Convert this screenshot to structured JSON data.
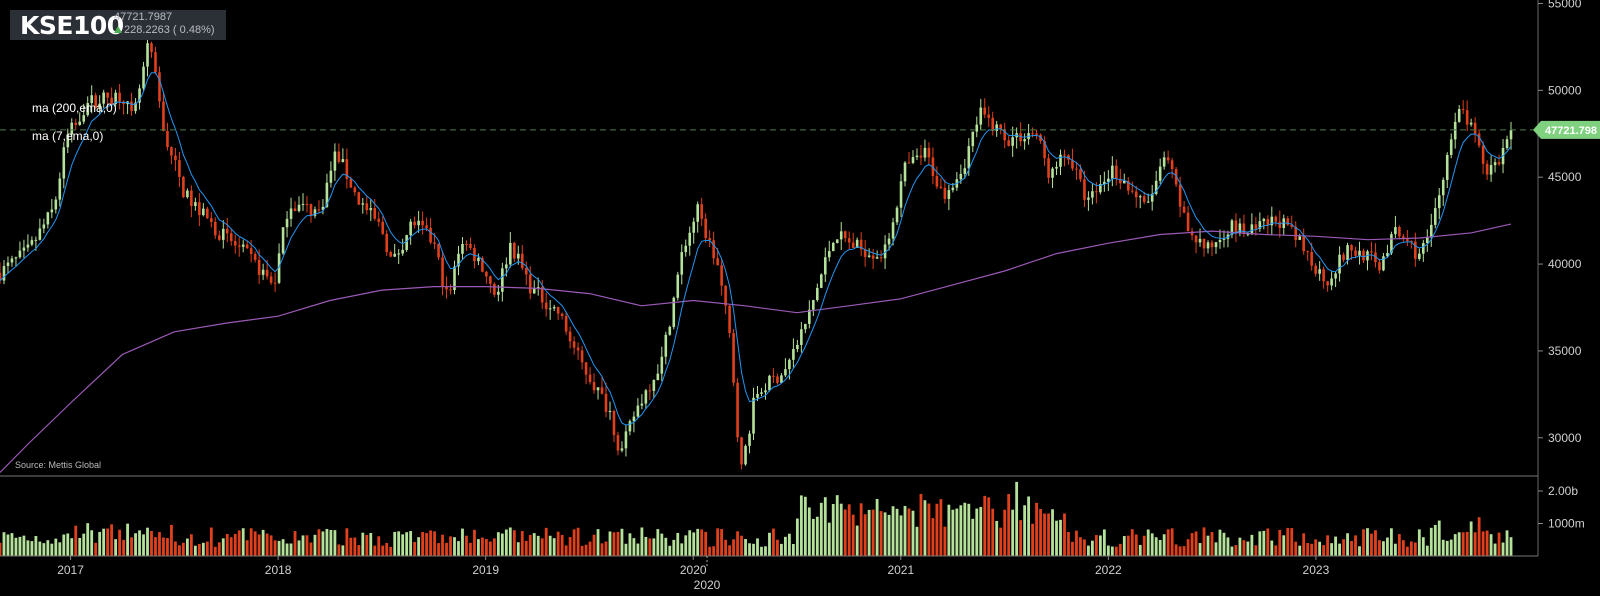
{
  "ticker": {
    "symbol": "KSE100",
    "last": "47721.7987",
    "change": "228.2263 ( 0.48%)"
  },
  "indicators": [
    "ma (200,ema,0)",
    "ma (7,ema,0)"
  ],
  "source": "Source: Mettis Global",
  "colors": {
    "background": "#000000",
    "up_candle": "#b5e29b",
    "down_candle": "#e0401c",
    "ema7": "#2196f3",
    "ema200": "#9b59b6",
    "last_price_tag": "#7fd17f",
    "grid_dash": "#4a7a4a",
    "axis_text": "#cfcfcf"
  },
  "chart_data": {
    "type": "candlestick",
    "title": "KSE100",
    "y_ticks": [
      "55000",
      "50000",
      "45000",
      "40000",
      "35000",
      "30000"
    ],
    "ylim": [
      27800,
      55200
    ],
    "volume_ticks": [
      "2.00b",
      "1000m"
    ],
    "volume_lim": [
      0,
      2400
    ],
    "x_ticks": [
      {
        "label": "2017",
        "x": 2017.0
      },
      {
        "label": "2018",
        "x": 2018.0
      },
      {
        "label": "2019",
        "x": 2019.0
      },
      {
        "label": "2020",
        "x": 2020.0
      },
      {
        "label": "2021",
        "x": 2021.0
      },
      {
        "label": "2022",
        "x": 2022.0
      },
      {
        "label": "2023",
        "x": 2023.0
      }
    ],
    "xlim": [
      2016.66,
      2024.07
    ],
    "last_price": 47721.7987,
    "last_price_label": "47721.798",
    "price_anchors": [
      [
        2016.66,
        39500
      ],
      [
        2016.8,
        40800
      ],
      [
        2016.92,
        43200
      ],
      [
        2016.98,
        47200
      ],
      [
        2017.08,
        49300
      ],
      [
        2017.25,
        49800
      ],
      [
        2017.3,
        48200
      ],
      [
        2017.38,
        52800
      ],
      [
        2017.45,
        47600
      ],
      [
        2017.55,
        44000
      ],
      [
        2017.7,
        42000
      ],
      [
        2017.85,
        40500
      ],
      [
        2017.98,
        38800
      ],
      [
        2018.05,
        43500
      ],
      [
        2018.2,
        43000
      ],
      [
        2018.28,
        46500
      ],
      [
        2018.38,
        43800
      ],
      [
        2018.5,
        42000
      ],
      [
        2018.55,
        40000
      ],
      [
        2018.65,
        42500
      ],
      [
        2018.75,
        41200
      ],
      [
        2018.82,
        37800
      ],
      [
        2018.88,
        41500
      ],
      [
        2018.98,
        40000
      ],
      [
        2019.05,
        38200
      ],
      [
        2019.12,
        41200
      ],
      [
        2019.22,
        38600
      ],
      [
        2019.35,
        37200
      ],
      [
        2019.45,
        34500
      ],
      [
        2019.6,
        31500
      ],
      [
        2019.65,
        29000
      ],
      [
        2019.72,
        31500
      ],
      [
        2019.85,
        34500
      ],
      [
        2019.95,
        40800
      ],
      [
        2020.02,
        43100
      ],
      [
        2020.12,
        39800
      ],
      [
        2020.18,
        35500
      ],
      [
        2020.23,
        28000
      ],
      [
        2020.3,
        32500
      ],
      [
        2020.45,
        34000
      ],
      [
        2020.55,
        36800
      ],
      [
        2020.68,
        41800
      ],
      [
        2020.78,
        41000
      ],
      [
        2020.92,
        40500
      ],
      [
        2021.02,
        45500
      ],
      [
        2021.12,
        46400
      ],
      [
        2021.2,
        44000
      ],
      [
        2021.3,
        45600
      ],
      [
        2021.38,
        48700
      ],
      [
        2021.52,
        47200
      ],
      [
        2021.65,
        47600
      ],
      [
        2021.72,
        45000
      ],
      [
        2021.8,
        46500
      ],
      [
        2021.9,
        43500
      ],
      [
        2022.02,
        45500
      ],
      [
        2022.12,
        44100
      ],
      [
        2022.18,
        43200
      ],
      [
        2022.28,
        46200
      ],
      [
        2022.38,
        42000
      ],
      [
        2022.48,
        40800
      ],
      [
        2022.58,
        42200
      ],
      [
        2022.68,
        41800
      ],
      [
        2022.82,
        42600
      ],
      [
        2022.92,
        41200
      ],
      [
        2023.05,
        39000
      ],
      [
        2023.15,
        40800
      ],
      [
        2023.25,
        40500
      ],
      [
        2023.3,
        39800
      ],
      [
        2023.38,
        41800
      ],
      [
        2023.45,
        41200
      ],
      [
        2023.5,
        40400
      ],
      [
        2023.56,
        42200
      ],
      [
        2023.64,
        46700
      ],
      [
        2023.7,
        49000
      ],
      [
        2023.76,
        47400
      ],
      [
        2023.82,
        45400
      ],
      [
        2023.88,
        45900
      ],
      [
        2023.94,
        47721.8
      ]
    ],
    "ema200": [
      [
        2016.66,
        28000
      ],
      [
        2016.8,
        29700
      ],
      [
        2017.0,
        32000
      ],
      [
        2017.25,
        34800
      ],
      [
        2017.5,
        36100
      ],
      [
        2017.75,
        36600
      ],
      [
        2018.0,
        37000
      ],
      [
        2018.25,
        37900
      ],
      [
        2018.5,
        38500
      ],
      [
        2018.75,
        38700
      ],
      [
        2019.0,
        38700
      ],
      [
        2019.25,
        38600
      ],
      [
        2019.5,
        38300
      ],
      [
        2019.75,
        37600
      ],
      [
        2020.0,
        37900
      ],
      [
        2020.25,
        37600
      ],
      [
        2020.5,
        37200
      ],
      [
        2020.75,
        37600
      ],
      [
        2021.0,
        38000
      ],
      [
        2021.25,
        38800
      ],
      [
        2021.5,
        39600
      ],
      [
        2021.75,
        40600
      ],
      [
        2022.0,
        41200
      ],
      [
        2022.25,
        41700
      ],
      [
        2022.5,
        41900
      ],
      [
        2022.75,
        41700
      ],
      [
        2023.0,
        41600
      ],
      [
        2023.25,
        41400
      ],
      [
        2023.5,
        41500
      ],
      [
        2023.75,
        41800
      ],
      [
        2023.94,
        42300
      ]
    ]
  }
}
